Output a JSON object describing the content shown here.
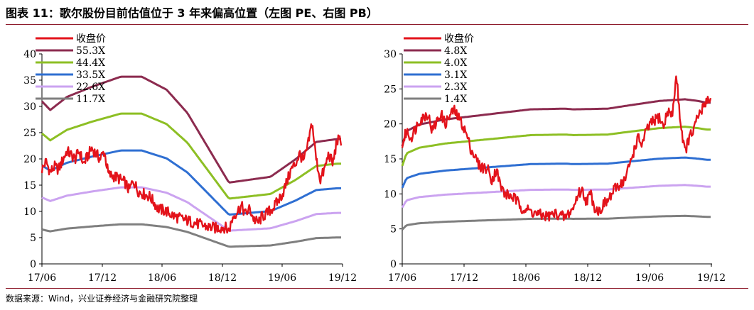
{
  "header": {
    "title": "图表 11：歌尔股份目前估值位于 3 年来偏高位置（左图 PE、右图 PB）"
  },
  "footer": {
    "source": "数据来源：Wind，兴业证券经济与金融研究院整理"
  },
  "chart_data": [
    {
      "type": "line",
      "name": "PE",
      "ylim": [
        0,
        40
      ],
      "yticks": [
        0,
        5,
        10,
        15,
        20,
        25,
        30,
        35,
        40
      ],
      "xticks": [
        "17/06",
        "17/12",
        "18/06",
        "18/12",
        "19/06",
        "19/12"
      ],
      "xlim": [
        0,
        3.6
      ],
      "legend_position": "top-left",
      "multiples": [
        {
          "name": "55.3X",
          "color": "#8c2b4f",
          "mult": 55.3
        },
        {
          "name": "44.4X",
          "color": "#8dbf24",
          "mult": 44.4
        },
        {
          "name": "33.5X",
          "color": "#2f6fd2",
          "mult": 33.5
        },
        {
          "name": "22.6X",
          "color": "#cba3f0",
          "mult": 22.6
        },
        {
          "name": "11.7X",
          "color": "#7f7f7f",
          "mult": 11.7
        }
      ],
      "eps": {
        "x": [
          0,
          0.1,
          0.3,
          0.6,
          0.95,
          1.2,
          1.5,
          1.75,
          2.0,
          2.25,
          2.75,
          3.05,
          3.3,
          3.55
        ],
        "y": [
          0.56,
          0.53,
          0.575,
          0.61,
          0.645,
          0.645,
          0.6,
          0.52,
          0.4,
          0.28,
          0.3,
          0.36,
          0.42,
          0.43
        ]
      },
      "close": {
        "name": "收盘价",
        "color": "#e3131b",
        "x": [
          0,
          0.05,
          0.1,
          0.15,
          0.2,
          0.3,
          0.4,
          0.45,
          0.5,
          0.6,
          0.7,
          0.75,
          0.8,
          0.9,
          1.0,
          1.05,
          1.1,
          1.15,
          1.2,
          1.3,
          1.4,
          1.5,
          1.6,
          1.7,
          1.8,
          1.9,
          2.0,
          2.1,
          2.2,
          2.25,
          2.3,
          2.35,
          2.4,
          2.45,
          2.5,
          2.55,
          2.6,
          2.65,
          2.7,
          2.8,
          2.9,
          3.0,
          3.05,
          3.1,
          3.15,
          3.2,
          3.25,
          3.3,
          3.35,
          3.4,
          3.45,
          3.5,
          3.55
        ],
        "y": [
          18,
          19.5,
          17.5,
          18.5,
          18,
          21.5,
          20,
          21.5,
          19,
          22,
          20,
          21.5,
          17,
          16.5,
          15.5,
          14,
          16,
          14,
          13.5,
          12.8,
          10.5,
          10,
          9,
          8.5,
          8,
          7.5,
          7,
          6.8,
          7,
          6.3,
          9,
          10,
          11,
          9.5,
          10.5,
          8.5,
          7.8,
          9,
          9.5,
          11,
          13.5,
          18,
          19,
          21,
          19.5,
          22.5,
          27,
          20,
          16,
          18,
          21,
          19,
          23.5
        ]
      }
    },
    {
      "type": "line",
      "name": "PB",
      "ylim": [
        0,
        30
      ],
      "yticks": [
        0,
        5,
        10,
        15,
        20,
        25,
        30
      ],
      "xticks": [
        "17/06",
        "17/12",
        "18/06",
        "18/12",
        "19/06",
        "19/12"
      ],
      "xlim": [
        0,
        3.6
      ],
      "legend_position": "top-left",
      "multiples": [
        {
          "name": "4.8X",
          "color": "#8c2b4f",
          "mult": 4.8
        },
        {
          "name": "4.0X",
          "color": "#8dbf24",
          "mult": 4.0
        },
        {
          "name": "3.1X",
          "color": "#2f6fd2",
          "mult": 3.1
        },
        {
          "name": "2.3X",
          "color": "#cba3f0",
          "mult": 2.3
        },
        {
          "name": "1.4X",
          "color": "#7f7f7f",
          "mult": 1.4
        }
      ],
      "bvps": {
        "x": [
          0,
          0.05,
          0.2,
          0.5,
          1.0,
          1.5,
          1.9,
          2.0,
          2.4,
          2.6,
          3.0,
          3.3,
          3.45,
          3.55
        ],
        "y": [
          3.5,
          3.95,
          4.15,
          4.3,
          4.45,
          4.6,
          4.62,
          4.6,
          4.62,
          4.7,
          4.85,
          4.9,
          4.85,
          4.8
        ]
      },
      "close": {
        "name": "收盘价",
        "color": "#e3131b",
        "x": [
          0,
          0.05,
          0.1,
          0.2,
          0.3,
          0.35,
          0.45,
          0.5,
          0.6,
          0.7,
          0.75,
          0.8,
          0.9,
          1.0,
          1.05,
          1.1,
          1.15,
          1.2,
          1.3,
          1.4,
          1.5,
          1.6,
          1.7,
          1.8,
          1.9,
          2.0,
          2.05,
          2.1,
          2.15,
          2.2,
          2.25,
          2.3,
          2.35,
          2.4,
          2.5,
          2.6,
          2.65,
          2.7,
          2.75,
          2.8,
          2.85,
          2.9,
          3.0,
          3.05,
          3.1,
          3.15,
          3.2,
          3.25,
          3.3,
          3.35,
          3.4,
          3.45,
          3.5,
          3.55
        ],
        "y": [
          17,
          19,
          18,
          20.5,
          21.5,
          19,
          21.5,
          20,
          22,
          20,
          18.5,
          16.5,
          14,
          13.5,
          12,
          13.5,
          11,
          10,
          9.5,
          8,
          7.5,
          7,
          6.8,
          7.2,
          6.6,
          8,
          10,
          10.5,
          9,
          10,
          8,
          7.5,
          8.5,
          9,
          11,
          12,
          14,
          16,
          18,
          17,
          19,
          20,
          21,
          19.5,
          22,
          21,
          27,
          20,
          16,
          18,
          19,
          21,
          22,
          23.5
        ]
      }
    }
  ]
}
